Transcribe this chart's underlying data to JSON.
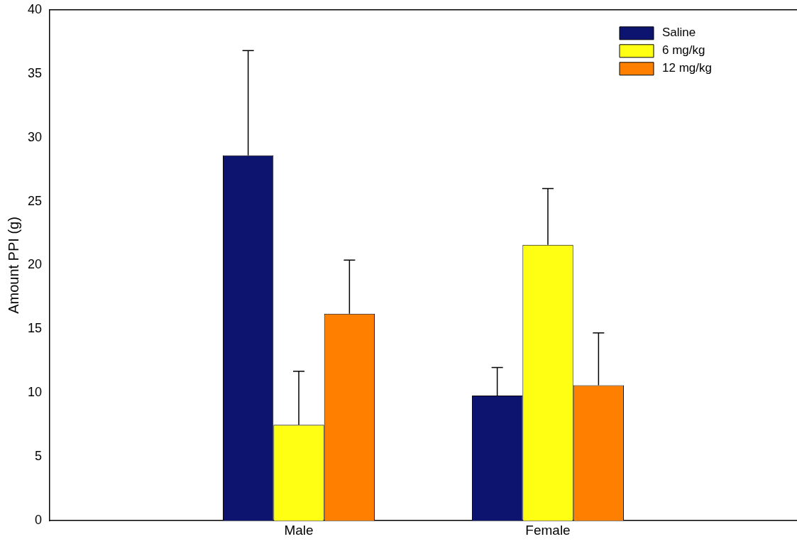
{
  "chart_data": {
    "type": "bar",
    "ylabel": "Amount PPI (g)",
    "categories": [
      "Male",
      "Female"
    ],
    "series": [
      {
        "name": "Saline",
        "color": "#0d1470",
        "values": [
          28.6,
          9.8
        ],
        "errors": [
          [
            28.6,
            36.8
          ],
          [
            9.8,
            12.0
          ]
        ]
      },
      {
        "name": "6 mg/kg",
        "color": "#ffff14",
        "values": [
          7.5,
          21.6
        ],
        "errors": [
          [
            7.5,
            11.7
          ],
          [
            21.6,
            26.0
          ]
        ]
      },
      {
        "name": "12 mg/kg",
        "color": "#ff8000",
        "values": [
          16.2,
          10.6
        ],
        "errors": [
          [
            16.2,
            20.4
          ],
          [
            10.6,
            14.7
          ]
        ]
      }
    ],
    "ylim": [
      0,
      40
    ],
    "yticks": [
      0,
      5,
      10,
      15,
      20,
      25,
      30,
      35,
      40
    ],
    "grid": false,
    "legend": "top right"
  }
}
